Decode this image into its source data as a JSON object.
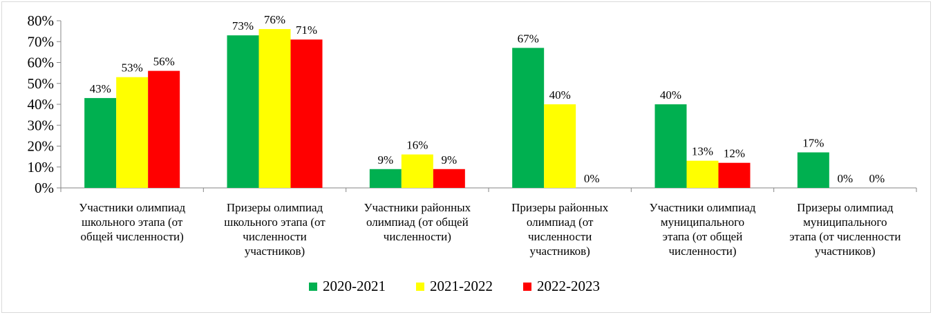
{
  "chart_data": {
    "type": "bar",
    "categories": [
      [
        "Участники олимпиад",
        "школьного этапа (от",
        "общей численности)"
      ],
      [
        "Призеры олимпиад",
        "школьного этапа (от",
        "численности",
        "участников)"
      ],
      [
        "Участники районных",
        "олимпиад (от общей",
        "численности)"
      ],
      [
        "Призеры районных",
        "олимпиад  (от",
        "численности",
        "участников)"
      ],
      [
        "Участники олимпиад",
        "муниципального",
        "этапа (от общей",
        "численности)"
      ],
      [
        "Призеры олимпиад",
        "муниципального",
        "этапа (от численности",
        "участников)"
      ]
    ],
    "series": [
      {
        "name": "2020-2021",
        "color": "#00b050",
        "values": [
          43,
          73,
          9,
          67,
          40,
          17
        ]
      },
      {
        "name": "2021-2022",
        "color": "#ffff00",
        "values": [
          53,
          76,
          16,
          40,
          13,
          0
        ]
      },
      {
        "name": "2022-2023",
        "color": "#ff0000",
        "values": [
          56,
          71,
          9,
          0,
          12,
          0
        ]
      }
    ],
    "yticks": [
      "0%",
      "10%",
      "20%",
      "30%",
      "40%",
      "50%",
      "60%",
      "70%",
      "80%"
    ],
    "ylim": [
      0,
      80
    ],
    "unit": "%",
    "grid": false,
    "legend": "bottom"
  }
}
